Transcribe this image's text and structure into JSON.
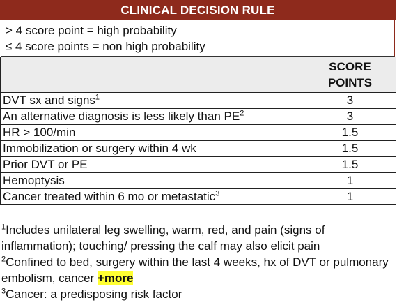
{
  "title": "CLINICAL DECISION RULE",
  "rules": [
    "> 4 score point = high probability",
    "≤ 4 score points = non high probability"
  ],
  "table": {
    "header_line1": "SCORE",
    "header_line2": "POINTS",
    "rows": [
      {
        "criterion": "DVT sx and signs",
        "note": "1",
        "score": "3"
      },
      {
        "criterion": "An alternative diagnosis is less likely than PE",
        "note": "2",
        "score": "3"
      },
      {
        "criterion": "HR > 100/min",
        "note": "",
        "score": "1.5"
      },
      {
        "criterion": "Immobilization or surgery within 4 wk",
        "note": "",
        "score": "1.5"
      },
      {
        "criterion": "Prior DVT or PE",
        "note": "",
        "score": "1.5"
      },
      {
        "criterion": "Hemoptysis",
        "note": "",
        "score": "1"
      },
      {
        "criterion": "Cancer treated within 6 mo or metastatic",
        "note": "3",
        "score": "1"
      }
    ]
  },
  "footnotes": {
    "f1_num": "1",
    "f1_text": "Includes unilateral leg swelling, warm, red, and pain (signs of inflammation); touching/ pressing the calf may also elicit pain",
    "f2_num": "2",
    "f2_text": "Confined to bed, surgery within the last 4 weeks, hx of DVT or pulmonary embolism, cancer ",
    "more_label": "+more",
    "f3_num": "3",
    "f3_text": "Cancer: a predisposing risk factor"
  },
  "colors": {
    "title_bg": "#8e2a1c",
    "header_bg": "#ececec",
    "highlight": "#ffff33"
  }
}
